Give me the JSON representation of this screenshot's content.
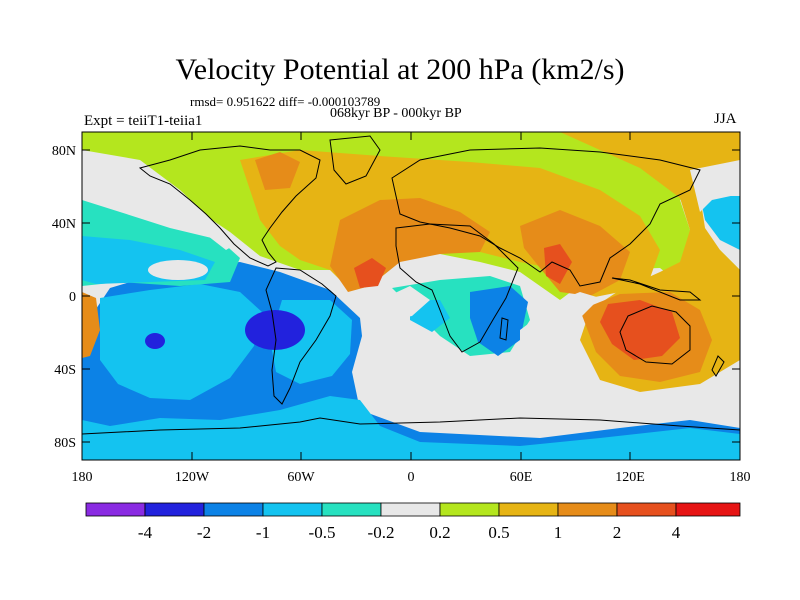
{
  "title": "Velocity Potential at 200 hPa (km2/s)",
  "stats": "rmsd= 0.951622 diff= -0.000103789",
  "period": "068kyr BP - 000kyr BP",
  "expt": "Expt = teiiT1-teiia1",
  "season": "JJA",
  "lat_labels": [
    "80N",
    "40N",
    "0",
    "40S",
    "80S"
  ],
  "lon_labels": [
    "180",
    "120W",
    "60W",
    "0",
    "60E",
    "120E",
    "180"
  ],
  "colorbar": {
    "colors": [
      "#8a2be2",
      "#2222dd",
      "#0c82e6",
      "#14c3f0",
      "#27e1c0",
      "#e8e8e8",
      "#b4e61e",
      "#e6b414",
      "#e68c19",
      "#e6501e",
      "#e61414"
    ],
    "labels": [
      "-4",
      "-2",
      "-1",
      "-0.5",
      "-0.2",
      "0.2",
      "0.5",
      "1",
      "2",
      "4"
    ]
  }
}
